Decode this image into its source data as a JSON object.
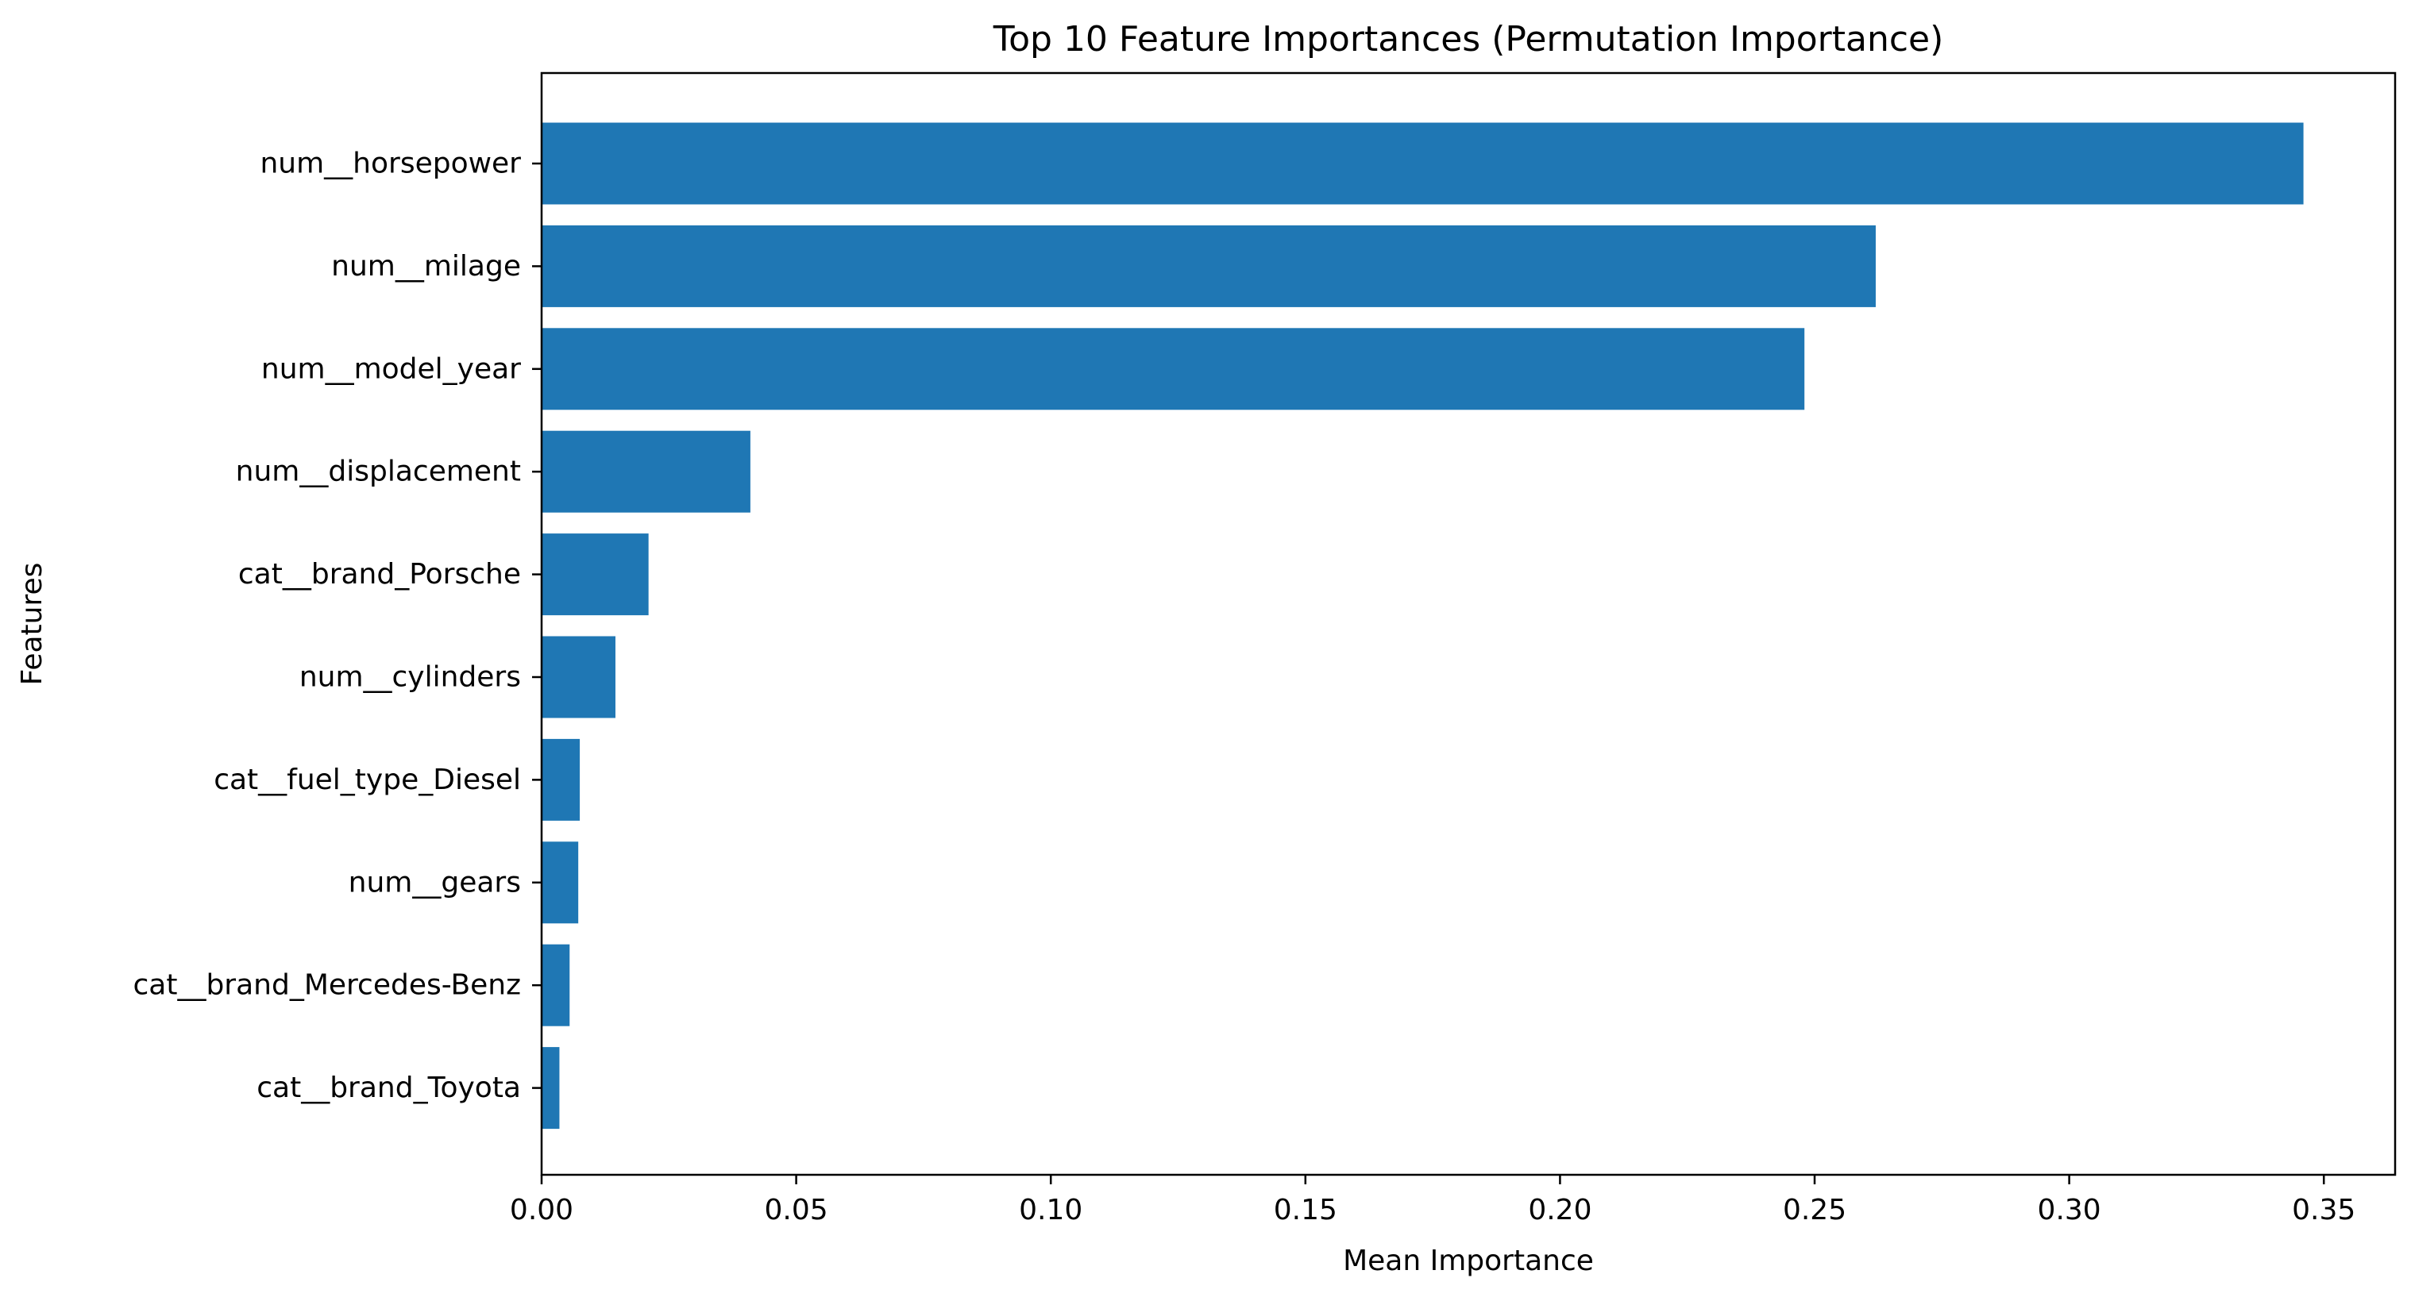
{
  "colors": {
    "bar": "#1f77b4",
    "axis": "#000000",
    "background": "#ffffff"
  },
  "chart_data": {
    "type": "bar",
    "orientation": "horizontal",
    "title": "Top 10 Feature Importances (Permutation Importance)",
    "xlabel": "Mean Importance",
    "ylabel": "Features",
    "categories": [
      "num__horsepower",
      "num__milage",
      "num__model_year",
      "num__displacement",
      "cat__brand_Porsche",
      "num__cylinders",
      "cat__fuel_type_Diesel",
      "num__gears",
      "cat__brand_Mercedes-Benz",
      "cat__brand_Toyota"
    ],
    "values": [
      0.346,
      0.262,
      0.248,
      0.041,
      0.021,
      0.0145,
      0.0075,
      0.0072,
      0.0055,
      0.0035
    ],
    "xlim": [
      0,
      0.364
    ],
    "xticks": [
      "0.00",
      "0.05",
      "0.10",
      "0.15",
      "0.20",
      "0.25",
      "0.30",
      "0.35"
    ],
    "grid": false,
    "legend": "none"
  }
}
